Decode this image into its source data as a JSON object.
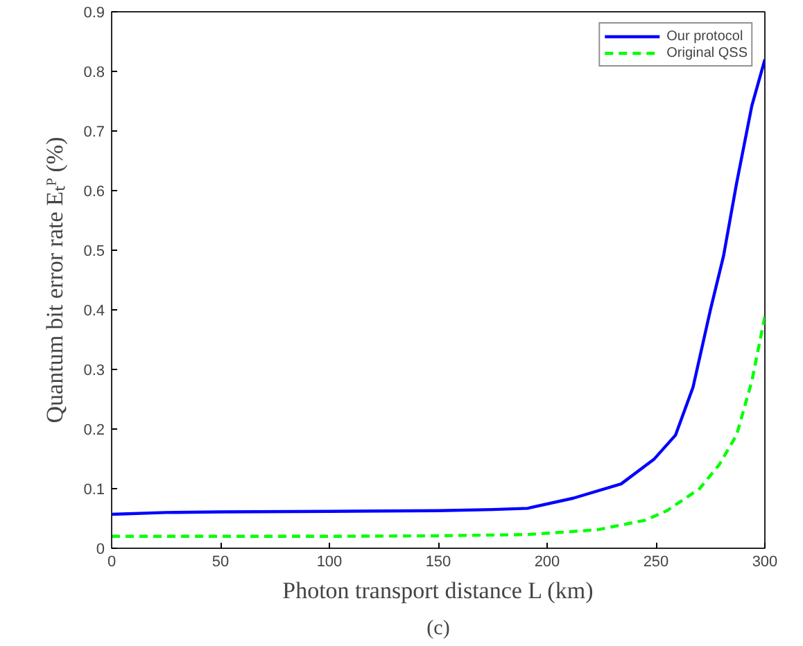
{
  "chart_data": {
    "type": "line",
    "xlabel": "Photon transport distance L (km)",
    "ylabel": "Quantum bit error rate Eₜᴾ (%)",
    "annotations": [
      "(c)"
    ],
    "xlim": [
      0,
      300
    ],
    "ylim": [
      0,
      0.9
    ],
    "xticks": [
      0,
      50,
      100,
      150,
      200,
      250,
      300
    ],
    "yticks": [
      0,
      0.1,
      0.2,
      0.3,
      0.4,
      0.5,
      0.6,
      0.7,
      0.8,
      0.9
    ],
    "grid": false,
    "legend": "top right",
    "series": [
      {
        "name": "Our protocol",
        "color": "#0000ff",
        "line_style": "solid",
        "x": [
          0,
          25,
          50,
          100,
          150,
          175,
          191,
          212,
          234,
          249,
          259,
          267,
          275,
          281,
          287,
          294,
          300
        ],
        "values": [
          0.057,
          0.06,
          0.061,
          0.062,
          0.063,
          0.065,
          0.067,
          0.084,
          0.108,
          0.149,
          0.19,
          0.27,
          0.4,
          0.49,
          0.612,
          0.742,
          0.82
        ]
      },
      {
        "name": "Original QSS",
        "color": "#00ff00",
        "line_style": "dashed",
        "x": [
          0,
          50,
          100,
          150,
          191,
          223,
          245,
          255,
          270,
          279,
          287,
          294,
          300
        ],
        "values": [
          0.02,
          0.02,
          0.02,
          0.021,
          0.023,
          0.031,
          0.047,
          0.063,
          0.1,
          0.14,
          0.19,
          0.28,
          0.389
        ]
      }
    ]
  }
}
